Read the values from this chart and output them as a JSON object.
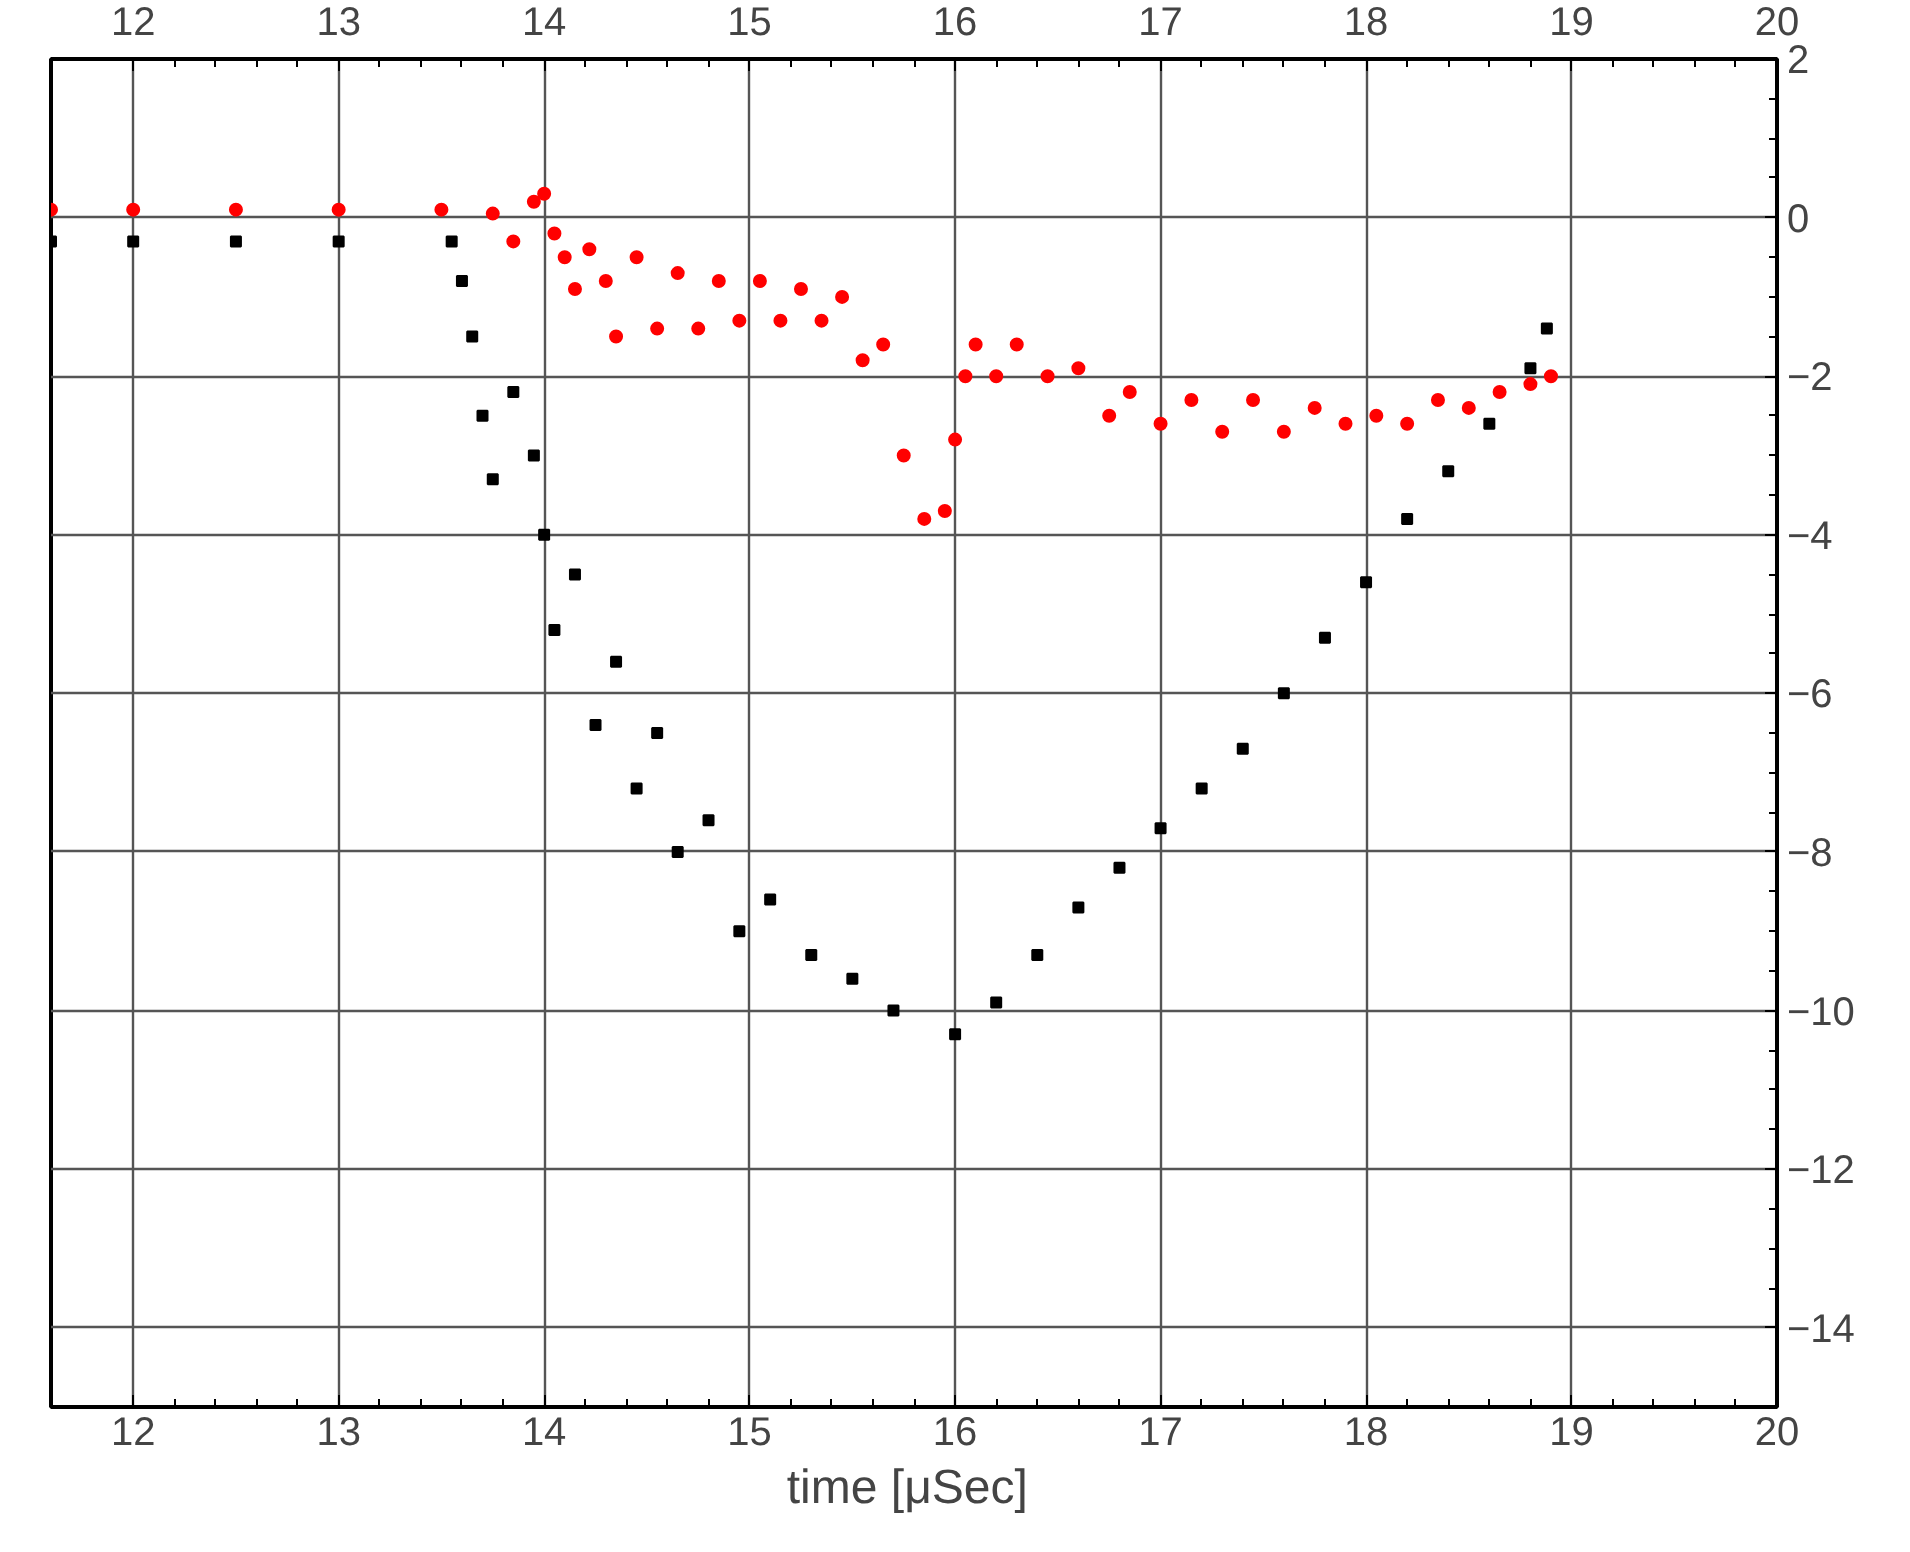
{
  "chart_data": {
    "type": "scatter",
    "xlabel": "time  [μSec]",
    "xlim": [
      11.6,
      20
    ],
    "xticks": [
      12,
      13,
      14,
      15,
      16,
      17,
      18,
      19,
      20
    ],
    "x2lim": [
      11.6,
      20
    ],
    "x2ticks": [
      12,
      13,
      14,
      15,
      16,
      17,
      18,
      19,
      20
    ],
    "ylim": [
      -15,
      2
    ],
    "yticks": [
      2,
      0,
      -2,
      -4,
      -6,
      -8,
      -10,
      -12,
      -14
    ],
    "grid": true,
    "marker": "square",
    "series": [
      {
        "color": "#000000",
        "x": [
          11.6,
          12.0,
          12.5,
          13.0,
          13.55,
          13.6,
          13.65,
          13.7,
          13.75,
          13.85,
          13.95,
          14.0,
          14.05,
          14.15,
          14.25,
          14.35,
          14.45,
          14.55,
          14.65,
          14.8,
          14.95,
          15.1,
          15.3,
          15.5,
          15.7,
          16.0,
          16.2,
          16.4,
          16.6,
          16.8,
          17.0,
          17.2,
          17.4,
          17.6,
          17.8,
          18.0,
          18.2,
          18.4,
          18.6,
          18.8,
          18.88
        ],
        "values": [
          -0.3,
          -0.3,
          -0.3,
          -0.3,
          -0.3,
          -0.8,
          -1.5,
          -2.5,
          -3.3,
          -2.2,
          -3.0,
          -4.0,
          -5.2,
          -4.5,
          -6.4,
          -5.6,
          -7.2,
          -6.5,
          -8.0,
          -7.6,
          -9.0,
          -8.6,
          -9.3,
          -9.6,
          -10.0,
          -10.3,
          -9.9,
          -9.3,
          -8.7,
          -8.2,
          -7.7,
          -7.2,
          -6.7,
          -6.0,
          -5.3,
          -4.6,
          -3.8,
          -3.2,
          -2.6,
          -1.9,
          -1.4
        ]
      },
      {
        "color": "#ff0000",
        "marker": "circle",
        "x": [
          11.6,
          12.0,
          12.5,
          13.0,
          13.5,
          13.75,
          13.85,
          13.95,
          14.0,
          14.05,
          14.1,
          14.15,
          14.22,
          14.3,
          14.35,
          14.45,
          14.55,
          14.65,
          14.75,
          14.85,
          14.95,
          15.05,
          15.15,
          15.25,
          15.35,
          15.45,
          15.55,
          15.65,
          15.75,
          15.85,
          15.95,
          16.0,
          16.05,
          16.1,
          16.2,
          16.3,
          16.45,
          16.6,
          16.75,
          16.85,
          17.0,
          17.15,
          17.3,
          17.45,
          17.6,
          17.75,
          17.9,
          18.05,
          18.2,
          18.35,
          18.5,
          18.65,
          18.8,
          18.9
        ],
        "values": [
          0.1,
          0.1,
          0.1,
          0.1,
          0.1,
          0.05,
          -0.3,
          0.2,
          0.3,
          -0.2,
          -0.5,
          -0.9,
          -0.4,
          -0.8,
          -1.5,
          -0.5,
          -1.4,
          -0.7,
          -1.4,
          -0.8,
          -1.3,
          -0.8,
          -1.3,
          -0.9,
          -1.3,
          -1.0,
          -1.8,
          -1.6,
          -3.0,
          -3.8,
          -3.7,
          -2.8,
          -2.0,
          -1.6,
          -2.0,
          -1.6,
          -2.0,
          -1.9,
          -2.5,
          -2.2,
          -2.6,
          -2.3,
          -2.7,
          -2.3,
          -2.7,
          -2.4,
          -2.6,
          -2.5,
          -2.6,
          -2.3,
          -2.4,
          -2.2,
          -2.1,
          -2.0
        ]
      }
    ]
  }
}
